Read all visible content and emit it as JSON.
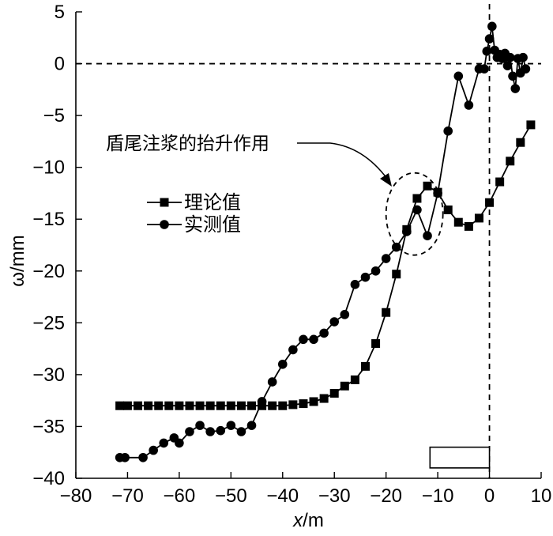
{
  "chart_data": {
    "type": "line",
    "xlabel_var": "x",
    "xlabel_unit": "/m",
    "ylabel": "ω/mm",
    "xlim": [
      -80,
      10
    ],
    "ylim": [
      -40,
      5
    ],
    "xticks": [
      -80,
      -70,
      -60,
      -50,
      -40,
      -30,
      -20,
      -10,
      0,
      10
    ],
    "yticks": [
      5,
      0,
      -5,
      -10,
      -15,
      -20,
      -25,
      -30,
      -35,
      -40
    ],
    "xtick_labels": [
      "−80",
      "−70",
      "−60",
      "−50",
      "−40",
      "−30",
      "−20",
      "−10",
      "0",
      "10"
    ],
    "ytick_labels": [
      "5",
      "0",
      "−5",
      "−10",
      "−15",
      "−20",
      "−25",
      "−30",
      "−35",
      "−40"
    ],
    "grid": false,
    "legend_position": "upper-left-inside",
    "reference_lines": [
      {
        "orientation": "horizontal",
        "value": 0,
        "style": "dashed"
      },
      {
        "orientation": "vertical",
        "value": 0,
        "style": "dashed"
      }
    ],
    "annotation": {
      "text": "盾尾注浆的抬升作用",
      "target_x": -14.5,
      "target_y": -14.5
    },
    "shield_box": {
      "x0": -11.5,
      "x1": 0,
      "y0": -39.0,
      "y1": -37.0
    },
    "series": [
      {
        "name": "理论值",
        "marker": "square",
        "x": [
          -71.5,
          -70,
          -68,
          -66,
          -64,
          -62,
          -60,
          -58,
          -56,
          -54,
          -52,
          -50,
          -48,
          -46,
          -44,
          -42,
          -40,
          -38,
          -36,
          -34,
          -32,
          -30,
          -28,
          -26,
          -24,
          -22,
          -20,
          -18,
          -16,
          -14,
          -12,
          -10,
          -8,
          -6,
          -4,
          -2,
          0,
          2,
          4,
          6,
          8
        ],
        "y": [
          -33,
          -33,
          -33,
          -33,
          -33,
          -33,
          -33,
          -33,
          -33,
          -33,
          -33,
          -33,
          -33,
          -33,
          -33,
          -33,
          -33,
          -32.9,
          -32.8,
          -32.6,
          -32.3,
          -31.8,
          -31.1,
          -30.5,
          -29.2,
          -27.0,
          -24.0,
          -20.3,
          -16.0,
          -13.0,
          -11.8,
          -12.4,
          -14.1,
          -15.3,
          -15.7,
          -14.9,
          -13.4,
          -11.4,
          -9.4,
          -7.6,
          -5.9
        ]
      },
      {
        "name": "实测值",
        "marker": "circle",
        "x": [
          -71.5,
          -70.5,
          -67,
          -65,
          -63,
          -61,
          -60,
          -58,
          -56,
          -54,
          -52,
          -50,
          -48,
          -46,
          -44,
          -42,
          -40,
          -38,
          -36,
          -34,
          -32,
          -30,
          -28,
          -26,
          -24,
          -22,
          -20,
          -18,
          -16,
          -14,
          -12,
          -10,
          -8,
          -6,
          -4,
          -2,
          -1,
          -0.5,
          0,
          0.5,
          1,
          1.5,
          2,
          2.5,
          3,
          3.5,
          4,
          4.5,
          5,
          5.5,
          6,
          6.5,
          7
        ],
        "y": [
          -38,
          -38,
          -38,
          -37.3,
          -36.6,
          -36.1,
          -36.6,
          -35.5,
          -34.9,
          -35.5,
          -35.4,
          -34.9,
          -35.5,
          -34.9,
          -32.6,
          -30.7,
          -29.0,
          -27.6,
          -26.6,
          -26.6,
          -26.0,
          -24.9,
          -24.2,
          -21.3,
          -20.6,
          -20.0,
          -18.8,
          -17.7,
          -16.2,
          -14.1,
          -16.6,
          -12.5,
          -6.5,
          -1.2,
          -4.0,
          -0.5,
          -0.5,
          1.2,
          2.4,
          3.6,
          1.3,
          0.6,
          0.9,
          0.5,
          1.0,
          -0.2,
          0.6,
          -1.2,
          -2.4,
          0.5,
          -0.9,
          0.6,
          -0.5
        ]
      }
    ]
  }
}
